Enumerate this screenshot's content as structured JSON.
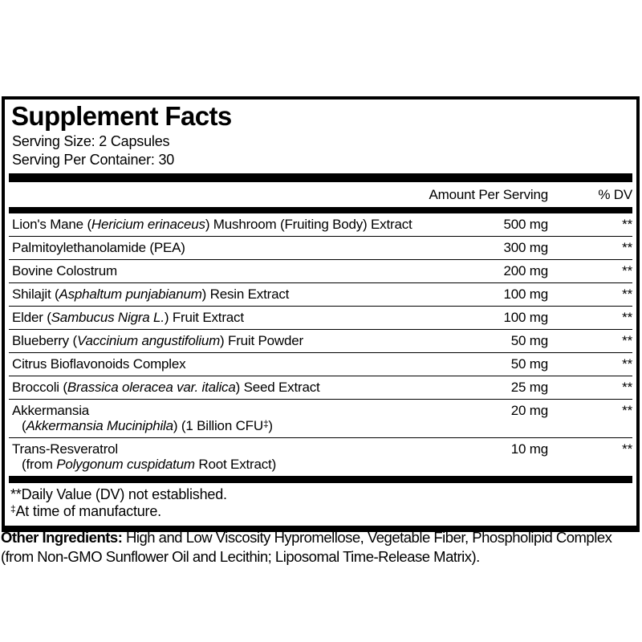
{
  "panel": {
    "title": "Supplement Facts",
    "serving_size": "Serving Size: 2 Capsules",
    "servings_per_container": "Serving Per Container: 30",
    "columns": {
      "amount": "Amount Per Serving",
      "dv": "% DV"
    },
    "rows": [
      {
        "name": [
          {
            "t": "Lion's Mane ("
          },
          {
            "t": "Hericium erinaceus",
            "i": true
          },
          {
            "t": ") Mushroom (Fruiting Body) Extract"
          }
        ],
        "amount": "500 mg",
        "dv": "**"
      },
      {
        "name": [
          {
            "t": "Palmitoylethanolamide (PEA)"
          }
        ],
        "amount": "300 mg",
        "dv": "**"
      },
      {
        "name": [
          {
            "t": "Bovine Colostrum"
          }
        ],
        "amount": "200 mg",
        "dv": "**"
      },
      {
        "name": [
          {
            "t": "Shilajit ("
          },
          {
            "t": "Asphaltum punjabianum",
            "i": true
          },
          {
            "t": ") Resin Extract"
          }
        ],
        "amount": "100 mg",
        "dv": "**"
      },
      {
        "name": [
          {
            "t": "Elder ("
          },
          {
            "t": "Sambucus Nigra L.",
            "i": true
          },
          {
            "t": ") Fruit Extract"
          }
        ],
        "amount": "100 mg",
        "dv": "**"
      },
      {
        "name": [
          {
            "t": "Blueberry ("
          },
          {
            "t": "Vaccinium angustifolium",
            "i": true
          },
          {
            "t": ") Fruit Powder"
          }
        ],
        "amount": "50 mg",
        "dv": "**"
      },
      {
        "name": [
          {
            "t": "Citrus Bioflavonoids Complex"
          }
        ],
        "amount": "50 mg",
        "dv": "**"
      },
      {
        "name": [
          {
            "t": "Broccoli ("
          },
          {
            "t": "Brassica oleracea var. italica",
            "i": true
          },
          {
            "t": ") Seed Extract"
          }
        ],
        "amount": "25 mg",
        "dv": "**"
      },
      {
        "name": [
          {
            "t": "Akkermansia"
          },
          {
            "br": true
          },
          {
            "t": "(",
            "ind": true
          },
          {
            "t": "Akkermansia Muciniphila",
            "i": true
          },
          {
            "t": ") (1 Billion CFU"
          },
          {
            "t": "‡",
            "sup": true
          },
          {
            "t": ")"
          }
        ],
        "amount": "20 mg",
        "dv": "**"
      },
      {
        "name": [
          {
            "t": "Trans-Resveratrol"
          },
          {
            "br": true
          },
          {
            "t": "(from ",
            "ind": true
          },
          {
            "t": "Polygonum cuspidatum",
            "i": true
          },
          {
            "t": " Root Extract)"
          }
        ],
        "amount": "10 mg",
        "dv": "**"
      }
    ],
    "footnotes": [
      {
        "marker": "**",
        "marker_sup": false,
        "text": "Daily Value (DV) not established."
      },
      {
        "marker": "‡",
        "marker_sup": true,
        "text": "At time of manufacture."
      }
    ]
  },
  "other_ingredients": {
    "label": "Other Ingredients:",
    "text": " High and Low Viscosity Hypromellose, Vegetable Fiber, Phospholipid Complex (from Non-GMO Sunflower Oil and Lecithin; Liposomal Time-Release Matrix)."
  }
}
